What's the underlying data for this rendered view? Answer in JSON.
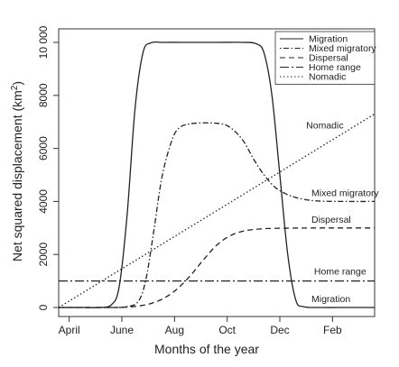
{
  "chart_data": {
    "type": "line",
    "title": "",
    "xlabel": "Months of the year",
    "ylabel_main": "Net squared displacement  (km",
    "ylabel_sup": "2",
    "ylabel_close": ")",
    "x_ticks": [
      {
        "label": "April",
        "value": 0.4
      },
      {
        "label": "June",
        "value": 2.4
      },
      {
        "label": "Aug",
        "value": 4.4
      },
      {
        "label": "Oct",
        "value": 6.4
      },
      {
        "label": "Dec",
        "value": 8.4
      },
      {
        "label": "Feb",
        "value": 10.4
      }
    ],
    "y_ticks": [
      0,
      2000,
      4000,
      6000,
      8000,
      10000
    ],
    "y_tick_labels": [
      "0",
      "2000",
      "4000",
      "6000",
      "8000",
      "10 000"
    ],
    "xlim": [
      0,
      12
    ],
    "ylim": [
      0,
      10000
    ],
    "legend_position": "top-right",
    "series": [
      {
        "name": "Migration",
        "dash": "solid",
        "points": [
          [
            0,
            0
          ],
          [
            1,
            0
          ],
          [
            1.5,
            0
          ],
          [
            2,
            100
          ],
          [
            2.3,
            800
          ],
          [
            2.6,
            3500
          ],
          [
            2.9,
            7500
          ],
          [
            3.2,
            9600
          ],
          [
            3.5,
            9980
          ],
          [
            4,
            10000
          ],
          [
            5,
            10000
          ],
          [
            6,
            10000
          ],
          [
            7,
            10000
          ],
          [
            7.5,
            9950
          ],
          [
            7.8,
            9600
          ],
          [
            8.1,
            8000
          ],
          [
            8.4,
            5000
          ],
          [
            8.7,
            2000
          ],
          [
            9,
            300
          ],
          [
            9.3,
            30
          ],
          [
            10,
            0
          ],
          [
            11,
            0
          ],
          [
            12,
            0
          ]
        ]
      },
      {
        "name": "Mixed migratory",
        "dash": "dotdash",
        "points": [
          [
            0,
            0
          ],
          [
            2,
            0
          ],
          [
            2.5,
            20
          ],
          [
            3,
            200
          ],
          [
            3.3,
            1000
          ],
          [
            3.6,
            2800
          ],
          [
            3.9,
            4800
          ],
          [
            4.2,
            6000
          ],
          [
            4.5,
            6700
          ],
          [
            5,
            6930
          ],
          [
            6,
            6950
          ],
          [
            6.5,
            6800
          ],
          [
            7,
            6300
          ],
          [
            7.4,
            5600
          ],
          [
            7.8,
            5000
          ],
          [
            8.2,
            4550
          ],
          [
            8.6,
            4300
          ],
          [
            9,
            4150
          ],
          [
            9.5,
            4050
          ],
          [
            10,
            4010
          ],
          [
            11,
            4000
          ],
          [
            12,
            4000
          ]
        ]
      },
      {
        "name": "Dispersal",
        "dash": "dashed",
        "points": [
          [
            0,
            0
          ],
          [
            2,
            0
          ],
          [
            2.5,
            10
          ],
          [
            3,
            50
          ],
          [
            3.5,
            150
          ],
          [
            4,
            350
          ],
          [
            4.5,
            700
          ],
          [
            5,
            1200
          ],
          [
            5.5,
            1800
          ],
          [
            6,
            2350
          ],
          [
            6.5,
            2700
          ],
          [
            7,
            2880
          ],
          [
            7.5,
            2950
          ],
          [
            8,
            2980
          ],
          [
            9,
            2995
          ],
          [
            10,
            3000
          ],
          [
            11,
            3000
          ],
          [
            12,
            3000
          ]
        ]
      },
      {
        "name": "Home range",
        "dash": "longdash",
        "points": [
          [
            0,
            1000
          ],
          [
            12,
            1000
          ]
        ]
      },
      {
        "name": "Nomadic",
        "dash": "dotted",
        "points": [
          [
            0,
            0
          ],
          [
            12,
            7300
          ]
        ]
      }
    ],
    "annotations": [
      {
        "text": "Nomadic",
        "series": "Nomadic",
        "x": 9.4,
        "y": 6750
      },
      {
        "text": "Mixed migratory",
        "series": "Mixed migratory",
        "x": 9.6,
        "y": 4200
      },
      {
        "text": "Dispersal",
        "series": "Dispersal",
        "x": 9.6,
        "y": 3200
      },
      {
        "text": "Home range",
        "series": "Home range",
        "x": 9.7,
        "y": 1250
      },
      {
        "text": "Migration",
        "series": "Migration",
        "x": 9.6,
        "y": 200
      }
    ]
  }
}
